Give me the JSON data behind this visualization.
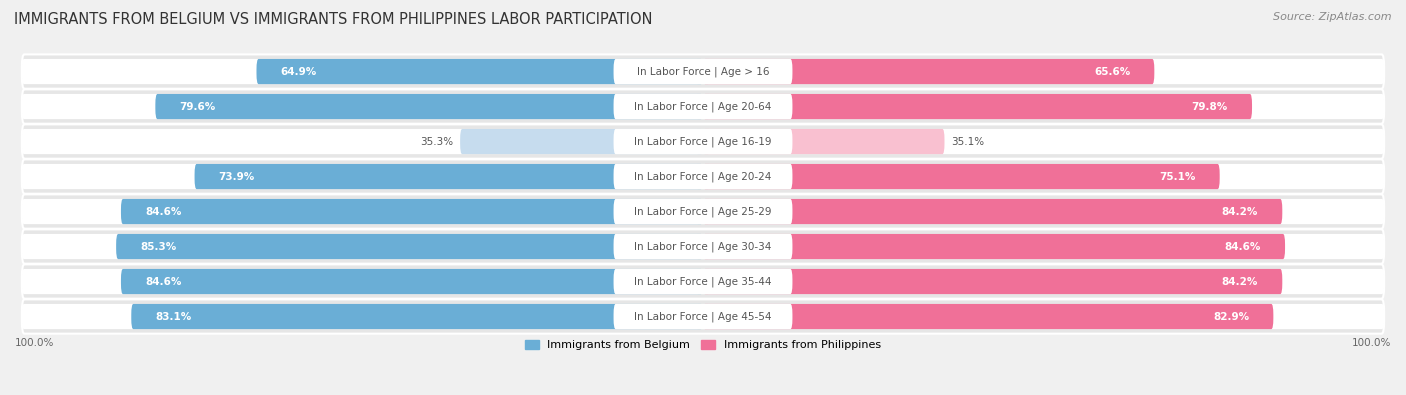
{
  "title": "IMMIGRANTS FROM BELGIUM VS IMMIGRANTS FROM PHILIPPINES LABOR PARTICIPATION",
  "source": "Source: ZipAtlas.com",
  "categories": [
    "In Labor Force | Age > 16",
    "In Labor Force | Age 20-64",
    "In Labor Force | Age 16-19",
    "In Labor Force | Age 20-24",
    "In Labor Force | Age 25-29",
    "In Labor Force | Age 30-34",
    "In Labor Force | Age 35-44",
    "In Labor Force | Age 45-54"
  ],
  "belgium_values": [
    64.9,
    79.6,
    35.3,
    73.9,
    84.6,
    85.3,
    84.6,
    83.1
  ],
  "philippines_values": [
    65.6,
    79.8,
    35.1,
    75.1,
    84.2,
    84.6,
    84.2,
    82.9
  ],
  "belgium_color": "#6aaed6",
  "philippines_color": "#f07098",
  "belgium_light_color": "#c6dcee",
  "philippines_light_color": "#f9c0d0",
  "row_bg_color": "#e6e6e6",
  "bar_bg_color": "#f5f5f5",
  "fig_bg_color": "#f0f0f0",
  "legend_belgium": "Immigrants from Belgium",
  "legend_philippines": "Immigrants from Philippines",
  "title_fontsize": 10.5,
  "source_fontsize": 8,
  "label_fontsize": 7.5,
  "value_fontsize": 7.5,
  "max_value": 100.0,
  "threshold": 50
}
